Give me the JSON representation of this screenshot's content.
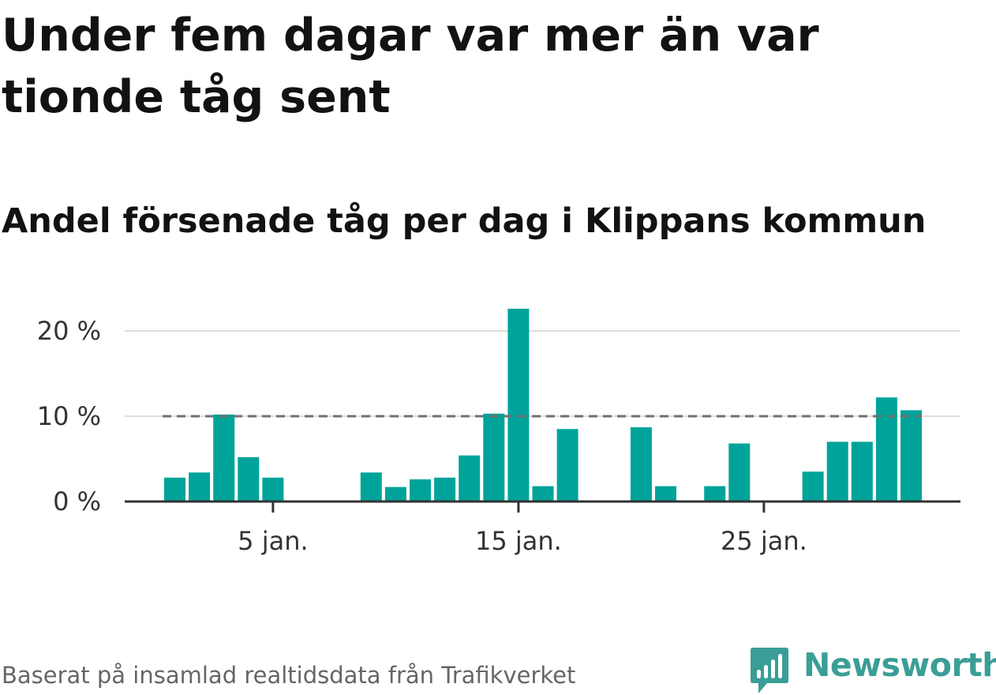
{
  "title": "Under fem dagar var mer än var tionde tåg sent",
  "subtitle": "Andel försenade tåg per dag i Klippans kommun",
  "source": "Baserat på insamlad realtidsdata från Trafikverket",
  "brand": {
    "name": "Newsworthy",
    "color": "#3a9e96",
    "icon": "newsworthy-logo-icon"
  },
  "colors": {
    "bar": "#00a39a",
    "reference_line": "#707070",
    "grid": "#dddddd",
    "axis": "#333333"
  },
  "chart_data": {
    "type": "bar",
    "x": [
      "2024-01-01",
      "2024-01-02",
      "2024-01-03",
      "2024-01-04",
      "2024-01-05",
      "2024-01-06",
      "2024-01-07",
      "2024-01-08",
      "2024-01-09",
      "2024-01-10",
      "2024-01-11",
      "2024-01-12",
      "2024-01-13",
      "2024-01-14",
      "2024-01-15",
      "2024-01-16",
      "2024-01-17",
      "2024-01-18",
      "2024-01-19",
      "2024-01-20",
      "2024-01-21",
      "2024-01-22",
      "2024-01-23",
      "2024-01-24",
      "2024-01-25",
      "2024-01-26",
      "2024-01-27",
      "2024-01-28",
      "2024-01-29",
      "2024-01-30",
      "2024-01-31"
    ],
    "values": [
      2.8,
      3.4,
      10.2,
      5.2,
      2.8,
      0,
      0,
      0,
      3.4,
      1.7,
      2.6,
      2.8,
      5.4,
      10.3,
      22.6,
      1.8,
      8.5,
      0,
      0,
      8.7,
      1.8,
      0,
      1.8,
      6.8,
      0,
      0,
      3.5,
      7.0,
      7.0,
      12.2,
      10.7
    ],
    "x_ticks": [
      {
        "date": "2024-01-05",
        "label": "5 jan."
      },
      {
        "date": "2024-01-15",
        "label": "15 jan."
      },
      {
        "date": "2024-01-25",
        "label": "25 jan."
      }
    ],
    "y_ticks": [
      {
        "value": 0,
        "label": "0 %"
      },
      {
        "value": 10,
        "label": "10 %"
      },
      {
        "value": 20,
        "label": "20 %"
      }
    ],
    "ylim": [
      0,
      23
    ],
    "reference_line": {
      "value": 10,
      "style": "dashed"
    },
    "grid": true,
    "legend": "none",
    "xlabel": "",
    "ylabel": ""
  }
}
